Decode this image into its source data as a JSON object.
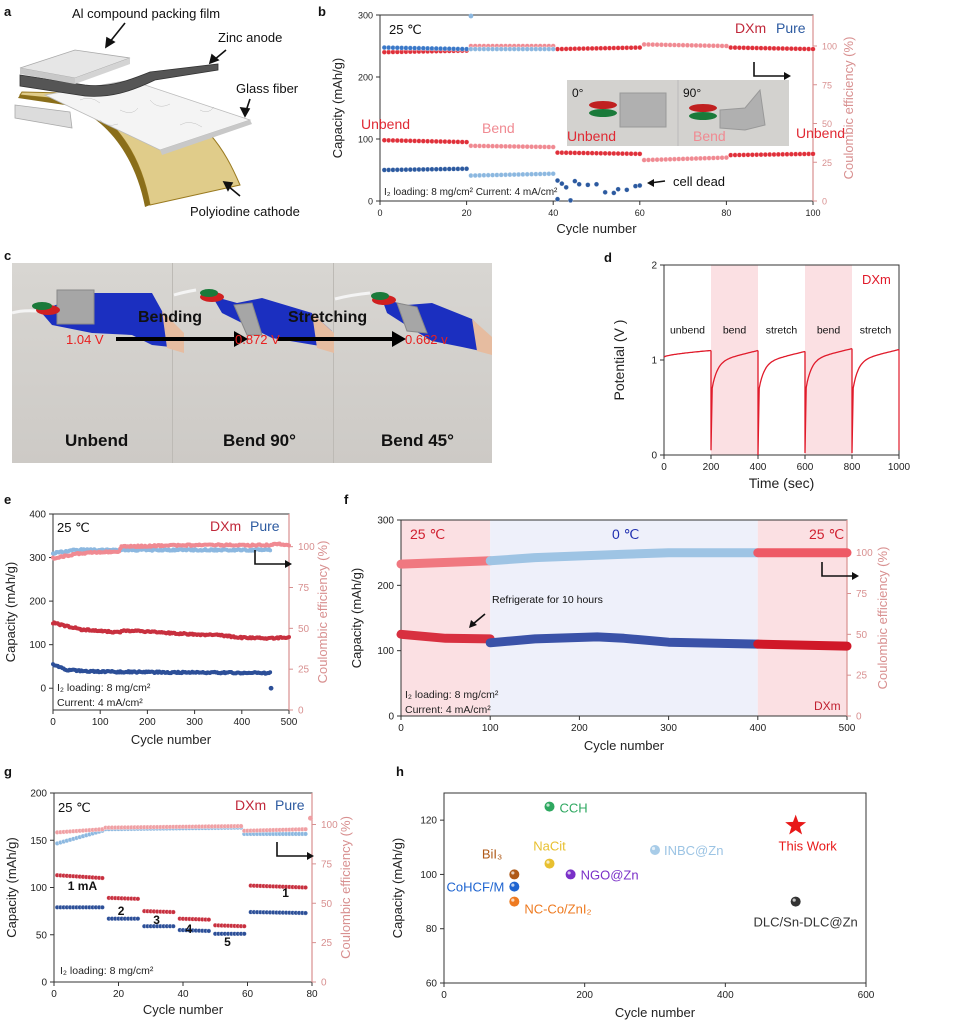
{
  "panels": {
    "a": {
      "label": "a",
      "layers": [
        "Al compound packing film",
        "Zinc anode",
        "Glass fiber",
        "Polyiodine cathode"
      ]
    },
    "c": {
      "label": "c",
      "states": [
        "Unbend",
        "Bend 90°",
        "Bend 45°"
      ],
      "voltages": [
        "1.04 V",
        "0.872 V",
        "0.662 v"
      ],
      "transitions": [
        "Bending",
        "Stretching"
      ]
    }
  },
  "colors": {
    "dxm": "#e0303a",
    "dxm_light": "#f08a92",
    "dxm_dark": "#c0283a",
    "pure": "#2c5aa0",
    "pure_light": "#8cb8e0",
    "ce_axis": "#d89090",
    "shade_red": "#fbe0e3",
    "shade_blue": "#eef0fa"
  },
  "chart_data": [
    {
      "id": "b",
      "label": "b",
      "type": "scatter",
      "title": "",
      "xlabel": "Cycle number",
      "ylabel": "Capacity (mAh/g)",
      "y2label": "Coulombic efficiency (%)",
      "xlim": [
        0,
        100
      ],
      "ylim": [
        0,
        300
      ],
      "y2lim": [
        0,
        100
      ],
      "xticks": [
        0,
        20,
        40,
        60,
        80,
        100
      ],
      "yticks": [
        0,
        100,
        200,
        300
      ],
      "y2ticks": [
        0,
        25,
        50,
        75,
        100
      ],
      "legend": [
        "DXm",
        "Pure"
      ],
      "temp": "25 ℃",
      "note": "I₂ loading: 8 mg/cm²  Current: 4 mA/cm²",
      "annotations": {
        "segments": [
          "Unbend",
          "Bend",
          "Unbend",
          "Bend",
          "Unbend"
        ],
        "dead": "cell dead",
        "inset": [
          "0°",
          "90°"
        ]
      },
      "series": [
        {
          "name": "DXm capacity",
          "segments": [
            [
              1,
              20,
              98,
              95
            ],
            [
              21,
              40,
              89,
              87
            ],
            [
              41,
              60,
              78,
              76
            ],
            [
              61,
              80,
              66,
              70
            ],
            [
              81,
              100,
              74,
              76
            ]
          ]
        },
        {
          "name": "Pure capacity",
          "segments": [
            [
              1,
              20,
              50,
              52
            ],
            [
              21,
              40,
              41,
              44
            ]
          ],
          "scatter": [
            [
              41,
              33
            ],
            [
              42,
              28
            ],
            [
              43,
              22
            ],
            [
              45,
              32
            ],
            [
              46,
              27
            ],
            [
              48,
              26
            ],
            [
              50,
              27
            ],
            [
              52,
              14
            ],
            [
              54,
              13
            ],
            [
              55,
              19
            ],
            [
              57,
              18
            ],
            [
              59,
              24
            ],
            [
              60,
              25
            ],
            [
              41,
              3
            ],
            [
              44,
              1
            ]
          ]
        },
        {
          "name": "DXm CE",
          "segments": [
            [
              1,
              20,
              96,
              97
            ],
            [
              21,
              40,
              100,
              100
            ],
            [
              41,
              60,
              98,
              99
            ],
            [
              61,
              80,
              101,
              100
            ],
            [
              81,
              100,
              99,
              98
            ]
          ]
        },
        {
          "name": "Pure CE",
          "segments": [
            [
              1,
              20,
              99,
              98
            ],
            [
              21,
              40,
              98,
              98
            ]
          ]
        }
      ]
    },
    {
      "id": "d",
      "label": "d",
      "type": "line",
      "xlabel": "Time  (sec)",
      "ylabel": "Potential (V )",
      "xlim": [
        0,
        1000
      ],
      "ylim": [
        0,
        2
      ],
      "xticks": [
        0,
        200,
        400,
        600,
        800,
        1000
      ],
      "yticks": [
        0,
        1,
        2
      ],
      "legend": [
        "DXm"
      ],
      "regions": [
        {
          "label": "unbend",
          "from": 0,
          "to": 200,
          "shaded": false
        },
        {
          "label": "bend",
          "from": 200,
          "to": 400,
          "shaded": true
        },
        {
          "label": "stretch",
          "from": 400,
          "to": 600,
          "shaded": false
        },
        {
          "label": "bend",
          "from": 600,
          "to": 800,
          "shaded": true
        },
        {
          "label": "stretch",
          "from": 800,
          "to": 1000,
          "shaded": false
        }
      ],
      "segments": [
        {
          "from": 0,
          "to": 200,
          "start": 1.03,
          "end": 1.1,
          "dip": 1.03
        },
        {
          "from": 200,
          "to": 400,
          "start": 0.05,
          "end": 1.1,
          "dip": 0.05
        },
        {
          "from": 400,
          "to": 600,
          "start": 0.0,
          "end": 1.09,
          "dip": 0.0
        },
        {
          "from": 600,
          "to": 800,
          "start": 0.02,
          "end": 1.12,
          "dip": 0.02
        },
        {
          "from": 800,
          "to": 1000,
          "start": 0.02,
          "end": 1.11,
          "dip": 0.02
        }
      ]
    },
    {
      "id": "e",
      "label": "e",
      "type": "scatter",
      "xlabel": "Cycle number",
      "ylabel": "Capacity (mAh/g)",
      "y2label": "Coulombic efficiency (%)",
      "xlim": [
        0,
        500
      ],
      "ylim": [
        -50,
        400
      ],
      "y2lim": [
        0,
        120
      ],
      "xticks": [
        0,
        100,
        200,
        300,
        400,
        500
      ],
      "yticks": [
        0,
        100,
        200,
        300,
        400
      ],
      "y2ticks": [
        0,
        25,
        50,
        75,
        100
      ],
      "legend": [
        "DXm",
        "Pure"
      ],
      "temp": "25 ℃",
      "note": [
        "I₂ loading: 8 mg/cm²",
        "Current: 4 mA/cm²"
      ],
      "series": [
        {
          "name": "DXm capacity",
          "points": [
            [
              0,
              150
            ],
            [
              60,
              135
            ],
            [
              140,
              128
            ],
            [
              150,
              133
            ],
            [
              200,
              130
            ],
            [
              290,
              124
            ],
            [
              350,
              122
            ],
            [
              400,
              116
            ],
            [
              460,
              115
            ],
            [
              500,
              117
            ]
          ]
        },
        {
          "name": "Pure capacity",
          "points": [
            [
              0,
              55
            ],
            [
              30,
              42
            ],
            [
              100,
              38
            ],
            [
              300,
              36
            ],
            [
              460,
              35
            ]
          ]
        },
        {
          "name": "DXm CE",
          "points": [
            [
              0,
              93
            ],
            [
              60,
              96
            ],
            [
              140,
              97
            ],
            [
              145,
              100
            ],
            [
              300,
              101
            ],
            [
              460,
              101
            ],
            [
              470,
              102
            ],
            [
              500,
              101
            ]
          ]
        },
        {
          "name": "Pure CE",
          "points": [
            [
              0,
              96
            ],
            [
              50,
              98
            ],
            [
              460,
              98
            ]
          ]
        }
      ]
    },
    {
      "id": "f",
      "label": "f",
      "type": "scatter",
      "xlabel": "Cycle number",
      "ylabel": "Capacity (mAh/g)",
      "y2label": "Coulombic efficiency (%)",
      "xlim": [
        0,
        500
      ],
      "ylim": [
        0,
        300
      ],
      "y2lim": [
        0,
        120
      ],
      "xticks": [
        0,
        100,
        200,
        300,
        400,
        500
      ],
      "yticks": [
        0,
        100,
        200,
        300
      ],
      "y2ticks": [
        0,
        25,
        50,
        75,
        100
      ],
      "legend": [
        "DXm"
      ],
      "regions": [
        {
          "label": "25 ℃",
          "from": 0,
          "to": 100,
          "color": "red"
        },
        {
          "label": "0 ℃",
          "from": 100,
          "to": 400,
          "color": "blue"
        },
        {
          "label": "25 ℃",
          "from": 400,
          "to": 500,
          "color": "red"
        }
      ],
      "annotation": "Refrigerate for 10 hours",
      "note": [
        "I₂ loading: 8 mg/cm²",
        "Current: 4 mA/cm²"
      ],
      "series": [
        {
          "name": "Capacity 25℃",
          "points": [
            [
              0,
              125
            ],
            [
              50,
              119
            ],
            [
              100,
              118
            ]
          ]
        },
        {
          "name": "Capacity 0℃",
          "points": [
            [
              100,
              112
            ],
            [
              150,
              118
            ],
            [
              220,
              121
            ],
            [
              250,
              119
            ],
            [
              300,
              113
            ],
            [
              400,
              110
            ]
          ]
        },
        {
          "name": "Capacity 25℃ (after)",
          "points": [
            [
              400,
              110
            ],
            [
              500,
              107
            ]
          ]
        },
        {
          "name": "CE 25℃",
          "points": [
            [
              0,
              93
            ],
            [
              100,
              95
            ]
          ]
        },
        {
          "name": "CE 0℃",
          "points": [
            [
              100,
              95
            ],
            [
              150,
              97
            ],
            [
              250,
              99
            ],
            [
              300,
              100
            ],
            [
              400,
              100
            ]
          ]
        },
        {
          "name": "CE 25℃ (after)",
          "points": [
            [
              400,
              100
            ],
            [
              500,
              100
            ]
          ]
        }
      ]
    },
    {
      "id": "g",
      "label": "g",
      "type": "scatter",
      "xlabel": "Cycle number",
      "ylabel": "Capacity (mAh/g)",
      "y2label": "Coulombic efficiency (%)",
      "xlim": [
        0,
        80
      ],
      "ylim": [
        0,
        200
      ],
      "y2lim": [
        0,
        120
      ],
      "xticks": [
        0,
        20,
        40,
        60,
        80
      ],
      "yticks": [
        0,
        50,
        100,
        150,
        200
      ],
      "y2ticks": [
        0,
        25,
        50,
        75,
        100
      ],
      "legend": [
        "DXm",
        "Pure"
      ],
      "temp": "25 ℃",
      "note": "I₂ loading: 8 mg/cm²",
      "rate_labels": [
        "1 mA",
        "2",
        "3",
        "4",
        "5",
        "1"
      ],
      "series": [
        {
          "name": "DXm capacity",
          "segments": [
            [
              1,
              15,
              113,
              110
            ],
            [
              17,
              26,
              89,
              88
            ],
            [
              28,
              37,
              75,
              74
            ],
            [
              39,
              48,
              67,
              66
            ],
            [
              50,
              59,
              60,
              59
            ],
            [
              61,
              78,
              102,
              100
            ]
          ]
        },
        {
          "name": "Pure capacity",
          "segments": [
            [
              1,
              15,
              79,
              79
            ],
            [
              17,
              26,
              67,
              67
            ],
            [
              28,
              37,
              59,
              59
            ],
            [
              39,
              48,
              55,
              54
            ],
            [
              50,
              59,
              51,
              51
            ],
            [
              61,
              78,
              74,
              73
            ]
          ]
        },
        {
          "name": "DXm CE",
          "segments": [
            [
              1,
              15,
              95,
              97
            ],
            [
              16,
              58,
              98,
              99
            ],
            [
              59,
              78,
              96,
              97
            ]
          ]
        },
        {
          "name": "Pure CE",
          "segments": [
            [
              1,
              15,
              88,
              96
            ],
            [
              16,
              58,
              97,
              98
            ],
            [
              59,
              78,
              94,
              94
            ]
          ]
        }
      ]
    },
    {
      "id": "h",
      "label": "h",
      "type": "scatter",
      "xlabel": "Cycle number",
      "ylabel": "Capacity (mAh/g)",
      "xlim": [
        0,
        600
      ],
      "ylim": [
        60,
        130
      ],
      "xticks": [
        0,
        200,
        400,
        600
      ],
      "yticks": [
        60,
        80,
        100,
        120
      ],
      "points": [
        {
          "name": "CCH",
          "x": 150,
          "y": 125,
          "color": "#2ea860"
        },
        {
          "name": "NaCit",
          "x": 150,
          "y": 104,
          "color": "#e8c030"
        },
        {
          "name": "BiI₃",
          "x": 100,
          "y": 100,
          "color": "#b05a18"
        },
        {
          "name": "CoHCF/M",
          "x": 100,
          "y": 95.5,
          "color": "#1e64d0"
        },
        {
          "name": "NC-Co/ZnI₂",
          "x": 100,
          "y": 90,
          "color": "#ee7a20"
        },
        {
          "name": "NGO@Zn",
          "x": 180,
          "y": 100,
          "color": "#7a30c8"
        },
        {
          "name": "INBC@Zn",
          "x": 300,
          "y": 109,
          "color": "#a8cce8"
        },
        {
          "name": "DLC/Sn-DLC@Zn",
          "x": 500,
          "y": 90,
          "color": "#333333"
        },
        {
          "name": "This Work",
          "x": 500,
          "y": 118,
          "color": "#e81818",
          "marker": "star"
        }
      ]
    }
  ]
}
